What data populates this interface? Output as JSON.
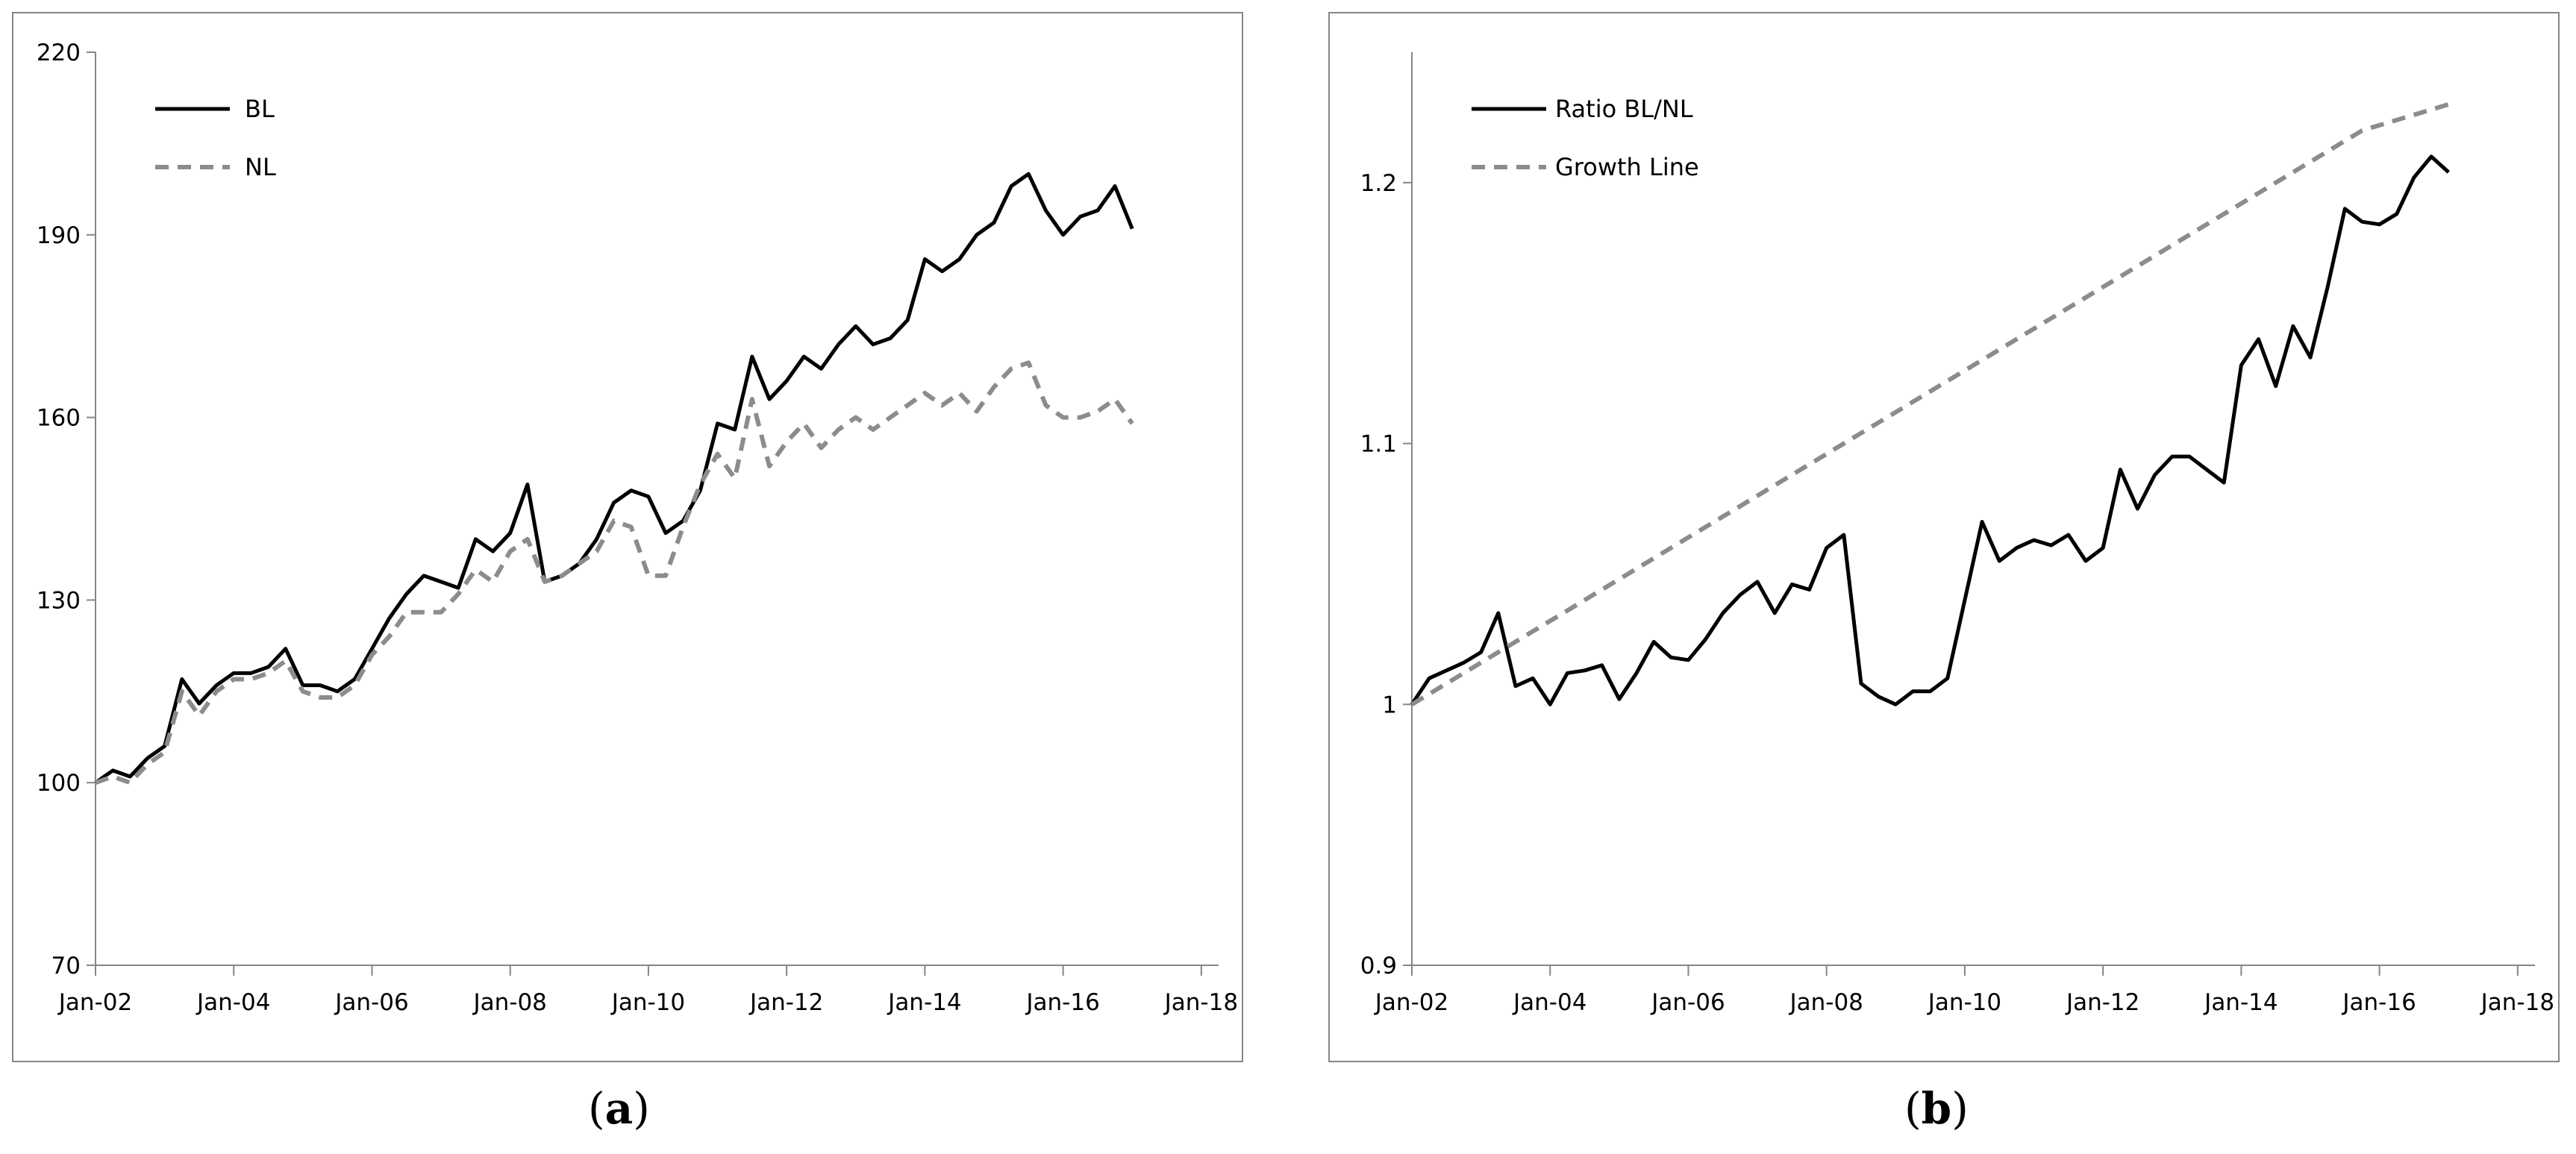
{
  "chart_data": [
    {
      "type": "line",
      "panel_label": "a",
      "x_start": "2002-01",
      "x_step": "quarterly",
      "ylim": [
        70,
        220
      ],
      "yticks": [
        70,
        100,
        130,
        160,
        190,
        220
      ],
      "xticks": [
        "Jan-02",
        "Jan-04",
        "Jan-06",
        "Jan-08",
        "Jan-10",
        "Jan-12",
        "Jan-14",
        "Jan-16",
        "Jan-18"
      ],
      "grid": false,
      "legend_position": "top-left",
      "series": [
        {
          "name": "BL",
          "style": "solid",
          "color": "#000000",
          "values": [
            100,
            102,
            101,
            104,
            106,
            117,
            113,
            116,
            118,
            118,
            119,
            122,
            116,
            116,
            115,
            117,
            122,
            127,
            131,
            134,
            133,
            132,
            140,
            138,
            141,
            149,
            133,
            134,
            136,
            140,
            146,
            148,
            147,
            141,
            143,
            148,
            159,
            158,
            170,
            163,
            166,
            170,
            168,
            172,
            175,
            172,
            173,
            176,
            186,
            184,
            186,
            190,
            192,
            198,
            200,
            194,
            190,
            193,
            194,
            198,
            191
          ]
        },
        {
          "name": "NL",
          "style": "dashed",
          "color": "#8c8c8c",
          "values": [
            100,
            101,
            100,
            103,
            105,
            115,
            111,
            115,
            117,
            117,
            118,
            120,
            115,
            114,
            114,
            116,
            121,
            124,
            128,
            128,
            128,
            131,
            135,
            133,
            138,
            140,
            133,
            134,
            136,
            138,
            143,
            142,
            134,
            134,
            142,
            149,
            154,
            150,
            163,
            152,
            156,
            159,
            155,
            158,
            160,
            158,
            160,
            162,
            164,
            162,
            164,
            161,
            165,
            168,
            169,
            162,
            160,
            160,
            161,
            163,
            159
          ]
        }
      ]
    },
    {
      "type": "line",
      "panel_label": "b",
      "x_start": "2002-01",
      "x_step": "quarterly",
      "ylim": [
        0.9,
        1.25
      ],
      "yticks": [
        "0.9",
        "1",
        "1.1",
        "1.2"
      ],
      "xticks": [
        "Jan-02",
        "Jan-04",
        "Jan-06",
        "Jan-08",
        "Jan-10",
        "Jan-12",
        "Jan-14",
        "Jan-16",
        "Jan-18"
      ],
      "grid": false,
      "legend_position": "top-left",
      "series": [
        {
          "name": "Ratio BL/NL",
          "style": "solid",
          "color": "#000000",
          "values": [
            1.0,
            1.01,
            1.013,
            1.016,
            1.02,
            1.035,
            1.007,
            1.01,
            1.0,
            1.012,
            1.013,
            1.015,
            1.002,
            1.012,
            1.024,
            1.018,
            1.017,
            1.025,
            1.035,
            1.042,
            1.047,
            1.035,
            1.046,
            1.044,
            1.06,
            1.065,
            1.008,
            1.003,
            1.0,
            1.005,
            1.005,
            1.01,
            1.04,
            1.07,
            1.055,
            1.06,
            1.063,
            1.061,
            1.065,
            1.055,
            1.06,
            1.09,
            1.075,
            1.088,
            1.095,
            1.095,
            1.09,
            1.085,
            1.13,
            1.14,
            1.122,
            1.145,
            1.133,
            1.16,
            1.19,
            1.185,
            1.184,
            1.188,
            1.202,
            1.21,
            1.204
          ]
        },
        {
          "name": "Growth Line",
          "style": "dashed",
          "color": "#8c8c8c",
          "values": [
            1.0,
            1.004,
            1.008,
            1.012,
            1.016,
            1.02,
            1.024,
            1.028,
            1.032,
            1.036,
            1.04,
            1.044,
            1.048,
            1.052,
            1.056,
            1.06,
            1.064,
            1.068,
            1.072,
            1.076,
            1.08,
            1.084,
            1.088,
            1.092,
            1.096,
            1.1,
            1.104,
            1.108,
            1.112,
            1.116,
            1.12,
            1.124,
            1.128,
            1.132,
            1.136,
            1.14,
            1.144,
            1.148,
            1.152,
            1.156,
            1.16,
            1.164,
            1.168,
            1.172,
            1.176,
            1.18,
            1.184,
            1.188,
            1.192,
            1.196,
            1.2,
            1.204,
            1.208,
            1.212,
            1.216,
            1.22,
            1.222,
            1.224,
            1.226,
            1.228,
            1.23
          ]
        }
      ]
    }
  ]
}
